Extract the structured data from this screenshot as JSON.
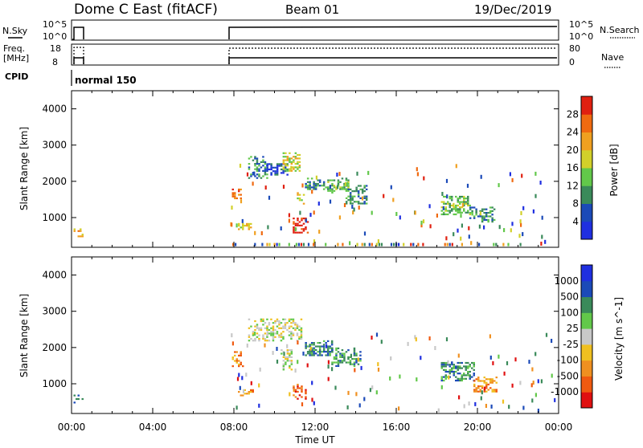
{
  "header": {
    "radar_title": "Dome C East (fitACF)",
    "beam": "Beam 01",
    "date": "19/Dec/2019"
  },
  "params": {
    "nsky_label": "N.Sky",
    "nsky_top": "10^5",
    "nsky_bottom": "10^0",
    "nsearch_label": "N.Search",
    "nsearch_top": "10^5",
    "nsearch_bottom": "10^0",
    "freq_label_1": "Freq.",
    "freq_label_2": "[MHz]",
    "freq_top": "18",
    "freq_bottom": "8",
    "nave_label": "Nave",
    "nave_top": "80",
    "nave_bottom": "0",
    "cpid_label": "CPID",
    "cpid_value": "normal 150"
  },
  "chart_data": [
    {
      "type": "heatmap",
      "panel": "power",
      "ylabel": "Slant Range [km]",
      "xlabel": "",
      "y_ticks": [
        "4000",
        "3000",
        "2000",
        "1000"
      ],
      "y_tick_values": [
        4000,
        3000,
        2000,
        1000
      ],
      "ylim": [
        180,
        4500
      ],
      "xlim_hours": [
        0,
        24
      ],
      "colorbar": {
        "label": "Power [dB]",
        "ticks": [
          "28",
          "24",
          "20",
          "16",
          "12",
          "8",
          "4"
        ],
        "colors_bottom_to_top": [
          "#1f2fe0",
          "#1b4ab8",
          "#3a8a5a",
          "#62c84a",
          "#d2d02a",
          "#f0a020",
          "#f06a10",
          "#e02010"
        ]
      },
      "patches": [
        {
          "t": [
            0.1,
            0.5
          ],
          "r": [
            500,
            700
          ],
          "level": 5
        },
        {
          "t": [
            7.9,
            8.3
          ],
          "r": [
            1500,
            1800
          ],
          "level": 6
        },
        {
          "t": [
            8.2,
            8.8
          ],
          "r": [
            700,
            850
          ],
          "level": 4
        },
        {
          "t": [
            8.7,
            9.6
          ],
          "r": [
            2100,
            2700
          ],
          "level": 2
        },
        {
          "t": [
            9.6,
            10.6
          ],
          "r": [
            2200,
            2500
          ],
          "level": 1
        },
        {
          "t": [
            10.4,
            11.2
          ],
          "r": [
            2300,
            2800
          ],
          "level": 4
        },
        {
          "t": [
            10.9,
            11.6
          ],
          "r": [
            600,
            1000
          ],
          "level": 7
        },
        {
          "t": [
            11.1,
            11.4
          ],
          "r": [
            1300,
            1700
          ],
          "level": 4
        },
        {
          "t": [
            11.5,
            12.6
          ],
          "r": [
            1800,
            2100
          ],
          "level": 2
        },
        {
          "t": [
            12.6,
            13.6
          ],
          "r": [
            1700,
            2100
          ],
          "level": 3
        },
        {
          "t": [
            13.5,
            14.5
          ],
          "r": [
            1400,
            1900
          ],
          "level": 2
        },
        {
          "t": [
            18.2,
            19.6
          ],
          "r": [
            1100,
            1600
          ],
          "level": 3
        },
        {
          "t": [
            19.6,
            20.8
          ],
          "r": [
            900,
            1300
          ],
          "level": 2
        }
      ],
      "ground_scatter": {
        "t": [
          7.8,
          23.8
        ],
        "r": [
          200,
          300
        ],
        "level": 4
      }
    },
    {
      "type": "heatmap",
      "panel": "velocity",
      "ylabel": "Slant Range [km]",
      "xlabel": "Time UT",
      "y_ticks": [
        "4000",
        "3000",
        "2000",
        "1000"
      ],
      "y_tick_values": [
        4000,
        3000,
        2000,
        1000
      ],
      "ylim": [
        180,
        4500
      ],
      "x_ticks": [
        "00:00",
        "04:00",
        "08:00",
        "12:00",
        "16:00",
        "20:00",
        "00:00"
      ],
      "x_tick_hours": [
        0,
        4,
        8,
        12,
        16,
        20,
        24
      ],
      "xlim_hours": [
        0,
        24
      ],
      "colorbar": {
        "label": "Velocity [m s^-1]",
        "ticks": [
          "1000",
          "500",
          "100",
          "25",
          "-25",
          "-100",
          "-500",
          "-1000"
        ],
        "colors_bottom_to_top": [
          "#e01010",
          "#f05a10",
          "#f09020",
          "#f0c020",
          "#c8c8c8",
          "#62c84a",
          "#3a8a5a",
          "#1b4ab8",
          "#1f2fe0"
        ]
      },
      "patches": [
        {
          "t": [
            0.1,
            0.5
          ],
          "r": [
            500,
            700
          ],
          "level": 6
        },
        {
          "t": [
            7.9,
            8.4
          ],
          "r": [
            1500,
            1900
          ],
          "level": 2
        },
        {
          "t": [
            8.2,
            8.9
          ],
          "r": [
            700,
            850
          ],
          "level": 2
        },
        {
          "t": [
            8.7,
            11.3
          ],
          "r": [
            2200,
            2800
          ],
          "level": 4
        },
        {
          "t": [
            10.3,
            10.8
          ],
          "r": [
            1400,
            2000
          ],
          "level": 4
        },
        {
          "t": [
            10.9,
            11.5
          ],
          "r": [
            600,
            1000
          ],
          "level": 1
        },
        {
          "t": [
            11.5,
            12.8
          ],
          "r": [
            1800,
            2200
          ],
          "level": 6
        },
        {
          "t": [
            12.8,
            14.2
          ],
          "r": [
            1500,
            2000
          ],
          "level": 6
        },
        {
          "t": [
            18.2,
            19.8
          ],
          "r": [
            1100,
            1600
          ],
          "level": 6
        },
        {
          "t": [
            19.8,
            20.9
          ],
          "r": [
            800,
            1200
          ],
          "level": 2
        }
      ]
    }
  ]
}
